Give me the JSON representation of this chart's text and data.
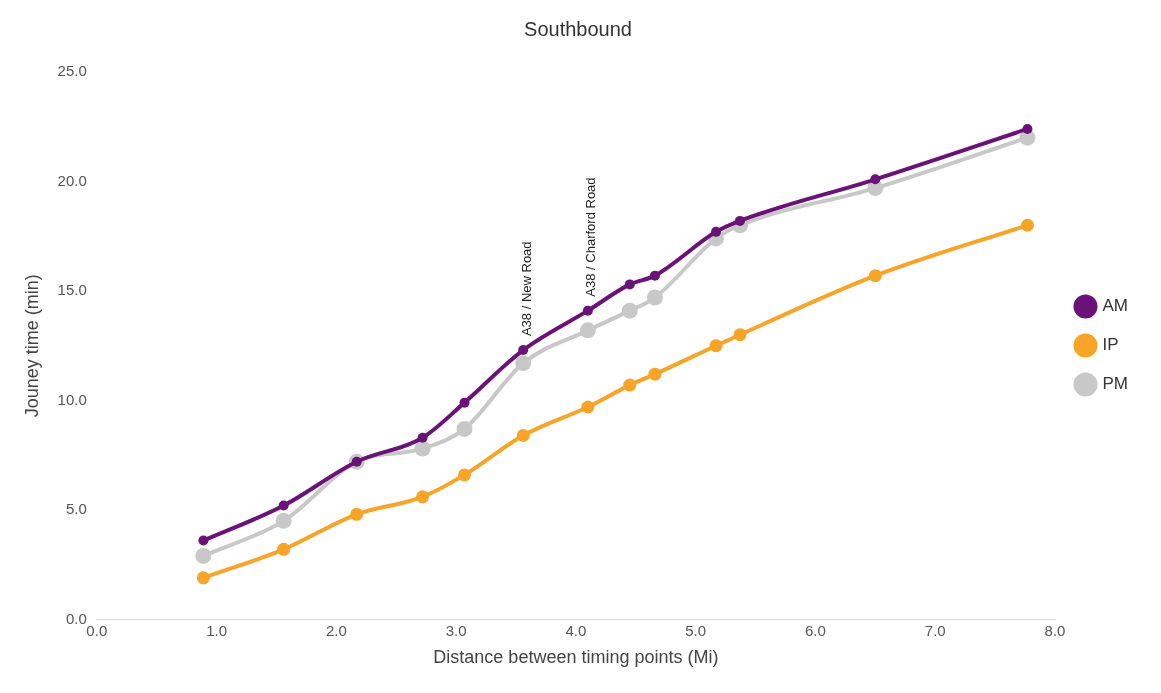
{
  "chart_data": {
    "type": "line",
    "title": "Southbound",
    "xlabel": "Distance between timing points (Mi)",
    "ylabel": "Jouney time (min)",
    "xlim": [
      0,
      8
    ],
    "xticks": [
      {
        "value": 0,
        "label": "0.0"
      },
      {
        "value": 1,
        "label": "1.0"
      },
      {
        "value": 2,
        "label": "2.0"
      },
      {
        "value": 3,
        "label": "3.0"
      },
      {
        "value": 4,
        "label": "4.0"
      },
      {
        "value": 5,
        "label": "5.0"
      },
      {
        "value": 6,
        "label": "6.0"
      },
      {
        "value": 7,
        "label": "7.0"
      },
      {
        "value": 8,
        "label": "8.0"
      }
    ],
    "ylim": [
      0,
      25
    ],
    "yticks": [
      {
        "value": 0,
        "label": "0.0"
      },
      {
        "value": 5,
        "label": "5.0"
      },
      {
        "value": 10,
        "label": "10.0"
      },
      {
        "value": 15,
        "label": "15.0"
      },
      {
        "value": 20,
        "label": "20.0"
      },
      {
        "value": 25,
        "label": "25.0"
      }
    ],
    "x": [
      0.89,
      1.56,
      2.17,
      2.72,
      3.07,
      3.56,
      4.1,
      4.45,
      4.66,
      5.17,
      5.37,
      6.5,
      7.77
    ],
    "series": [
      {
        "name": "AM",
        "color": "#6b1278",
        "values": [
          3.6,
          5.2,
          7.2,
          8.3,
          9.9,
          12.3,
          14.1,
          15.3,
          15.7,
          17.7,
          18.2,
          20.1,
          22.4
        ]
      },
      {
        "name": "IP",
        "color": "#f7a428",
        "values": [
          1.9,
          3.2,
          4.8,
          5.6,
          6.6,
          8.4,
          9.7,
          10.7,
          11.2,
          12.5,
          13.0,
          15.7,
          18.0
        ]
      },
      {
        "name": "PM",
        "color": "#c8c8c8",
        "values": [
          2.9,
          4.5,
          7.2,
          7.8,
          8.7,
          11.7,
          13.2,
          14.1,
          14.7,
          17.4,
          18.0,
          19.7,
          22.0
        ]
      }
    ],
    "annotations": [
      {
        "text": "A38 / New Road",
        "x": 3.56,
        "y": 12.3
      },
      {
        "text": "A38 / Charford Road",
        "x": 4.1,
        "y": 14.1
      }
    ],
    "legend": "right",
    "marker": "circle",
    "line_style": "solid",
    "grid": false
  }
}
